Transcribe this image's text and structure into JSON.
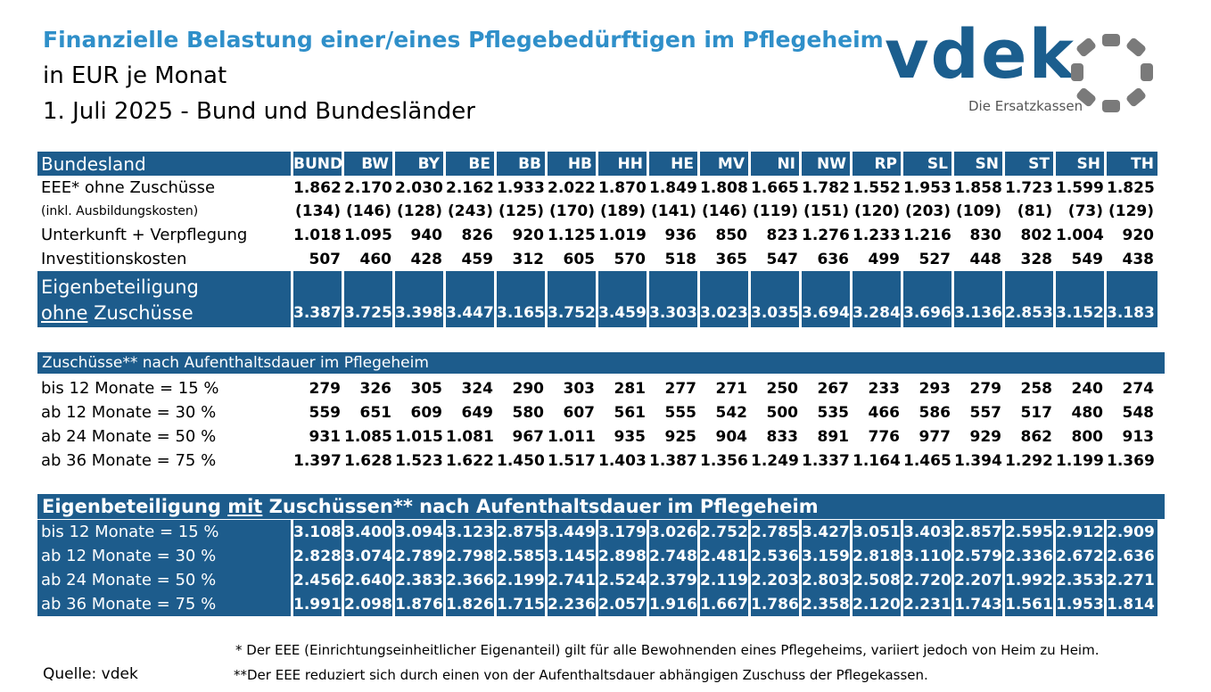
{
  "title": {
    "line1": "Finanzielle Belastung einer/eines Pflegebedürftigen im Pflegeheim",
    "line2": "in EUR je Monat",
    "line3": "1. Juli 2025 - Bund und Bundesländer"
  },
  "logo": {
    "word": "vdek",
    "sub": "Die Ersatzkassen"
  },
  "colors": {
    "accent": "#2f8fc9",
    "band": "#1d5c8c"
  },
  "table": {
    "header_label": "Bundesland",
    "columns": [
      "BUND",
      "BW",
      "BY",
      "BE",
      "BB",
      "HB",
      "HH",
      "HE",
      "MV",
      "NI",
      "NW",
      "RP",
      "SL",
      "SN",
      "ST",
      "SH",
      "TH"
    ],
    "eee": {
      "label": "EEE* ohne Zuschüsse",
      "values": [
        "1.862",
        "2.170",
        "2.030",
        "2.162",
        "1.933",
        "2.022",
        "1.870",
        "1.849",
        "1.808",
        "1.665",
        "1.782",
        "1.552",
        "1.953",
        "1.858",
        "1.723",
        "1.599",
        "1.825"
      ]
    },
    "ausbildung": {
      "label": "(inkl. Ausbildungskosten)",
      "values": [
        "(134)",
        "(146)",
        "(128)",
        "(243)",
        "(125)",
        "(170)",
        "(189)",
        "(141)",
        "(146)",
        "(119)",
        "(151)",
        "(120)",
        "(203)",
        "(109)",
        "(81)",
        "(73)",
        "(129)"
      ]
    },
    "unterkunft": {
      "label": "Unterkunft + Verpflegung",
      "values": [
        "1.018",
        "1.095",
        "940",
        "826",
        "920",
        "1.125",
        "1.019",
        "936",
        "850",
        "823",
        "1.276",
        "1.233",
        "1.216",
        "830",
        "802",
        "1.004",
        "920"
      ]
    },
    "invest": {
      "label": "Investitionskosten",
      "values": [
        "507",
        "460",
        "428",
        "459",
        "312",
        "605",
        "570",
        "518",
        "365",
        "547",
        "636",
        "499",
        "527",
        "448",
        "328",
        "549",
        "438"
      ]
    },
    "eigen": {
      "label_line1": "Eigenbeteiligung",
      "label_ohne": "ohne",
      "label_rest": " Zuschüsse",
      "values": [
        "3.387",
        "3.725",
        "3.398",
        "3.447",
        "3.165",
        "3.752",
        "3.459",
        "3.303",
        "3.023",
        "3.035",
        "3.694",
        "3.284",
        "3.696",
        "3.136",
        "2.853",
        "3.152",
        "3.183"
      ]
    }
  },
  "zuschuesse": {
    "title": "Zuschüsse** nach Aufenthaltsdauer im Pflegeheim",
    "rows": [
      {
        "label": "bis 12 Monate = 15 %",
        "values": [
          "279",
          "326",
          "305",
          "324",
          "290",
          "303",
          "281",
          "277",
          "271",
          "250",
          "267",
          "233",
          "293",
          "279",
          "258",
          "240",
          "274"
        ]
      },
      {
        "label": "ab 12 Monate  = 30 %",
        "values": [
          "559",
          "651",
          "609",
          "649",
          "580",
          "607",
          "561",
          "555",
          "542",
          "500",
          "535",
          "466",
          "586",
          "557",
          "517",
          "480",
          "548"
        ]
      },
      {
        "label": "ab 24 Monate  = 50 %",
        "values": [
          "931",
          "1.085",
          "1.015",
          "1.081",
          "967",
          "1.011",
          "935",
          "925",
          "904",
          "833",
          "891",
          "776",
          "977",
          "929",
          "862",
          "800",
          "913"
        ]
      },
      {
        "label": "ab 36 Monate  = 75 %",
        "values": [
          "1.397",
          "1.628",
          "1.523",
          "1.622",
          "1.450",
          "1.517",
          "1.403",
          "1.387",
          "1.356",
          "1.249",
          "1.337",
          "1.164",
          "1.465",
          "1.394",
          "1.292",
          "1.199",
          "1.369"
        ]
      }
    ]
  },
  "mit": {
    "title_pre": "Eigenbeteiligung ",
    "title_mit": "mit",
    "title_post": " Zuschüssen** nach Aufenthaltsdauer im Pflegeheim",
    "rows": [
      {
        "label": "bis 12 Monate = 15 %",
        "values": [
          "3.108",
          "3.400",
          "3.094",
          "3.123",
          "2.875",
          "3.449",
          "3.179",
          "3.026",
          "2.752",
          "2.785",
          "3.427",
          "3.051",
          "3.403",
          "2.857",
          "2.595",
          "2.912",
          "2.909"
        ]
      },
      {
        "label": "ab 12 Monate  = 30 %",
        "values": [
          "2.828",
          "3.074",
          "2.789",
          "2.798",
          "2.585",
          "3.145",
          "2.898",
          "2.748",
          "2.481",
          "2.536",
          "3.159",
          "2.818",
          "3.110",
          "2.579",
          "2.336",
          "2.672",
          "2.636"
        ]
      },
      {
        "label": "ab 24 Monate  = 50 %",
        "values": [
          "2.456",
          "2.640",
          "2.383",
          "2.366",
          "2.199",
          "2.741",
          "2.524",
          "2.379",
          "2.119",
          "2.203",
          "2.803",
          "2.508",
          "2.720",
          "2.207",
          "1.992",
          "2.353",
          "2.271"
        ]
      },
      {
        "label": "ab 36 Monate  = 75 %",
        "values": [
          "1.991",
          "2.098",
          "1.876",
          "1.826",
          "1.715",
          "2.236",
          "2.057",
          "1.916",
          "1.667",
          "1.786",
          "2.358",
          "2.120",
          "2.231",
          "1.743",
          "1.561",
          "1.953",
          "1.814"
        ]
      }
    ]
  },
  "footnotes": {
    "note1": "* Der EEE (Einrichtungseinheitlicher Eigenanteil) gilt für alle Bewohnenden eines Pflegeheims, variiert jedoch von Heim zu Heim.",
    "note2": "**Der EEE reduziert sich durch einen von der Aufenthaltsdauer abhängigen Zuschuss der Pflegekassen.",
    "source": "Quelle: vdek"
  }
}
